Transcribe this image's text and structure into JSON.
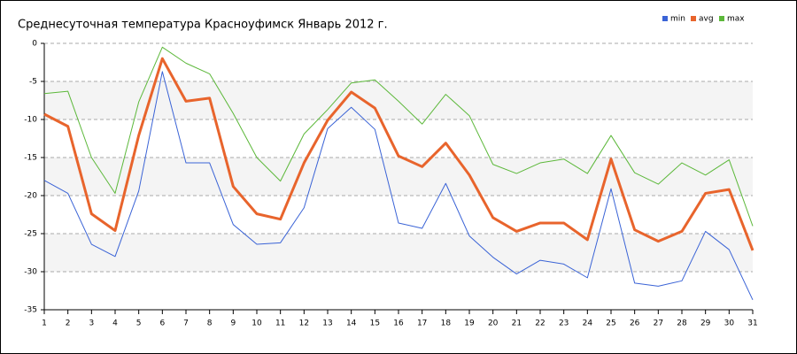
{
  "chart_data": {
    "type": "line",
    "title": "Среднесуточная температура Красноуфимск  Январь 2012 г.",
    "x": [
      1,
      2,
      3,
      4,
      5,
      6,
      7,
      8,
      9,
      10,
      11,
      12,
      13,
      14,
      15,
      16,
      17,
      18,
      19,
      20,
      21,
      22,
      23,
      24,
      25,
      26,
      27,
      28,
      29,
      30,
      31
    ],
    "xlim": [
      1,
      31
    ],
    "xticks": [
      1,
      2,
      3,
      4,
      5,
      6,
      7,
      8,
      9,
      10,
      11,
      12,
      13,
      14,
      15,
      16,
      17,
      18,
      19,
      20,
      21,
      22,
      23,
      24,
      25,
      26,
      27,
      28,
      29,
      30,
      31
    ],
    "ylim": [
      -35,
      0
    ],
    "yticks": [
      0,
      -5,
      -10,
      -15,
      -20,
      -25,
      -30,
      -35
    ],
    "grid": true,
    "legend": "top-right",
    "series": [
      {
        "name": "min",
        "color": "#3a63d6",
        "width": 1,
        "values": [
          -18.0,
          -19.7,
          -26.4,
          -28.0,
          -19.4,
          -3.7,
          -15.7,
          -15.7,
          -23.8,
          -26.4,
          -26.2,
          -21.6,
          -11.2,
          -8.4,
          -11.3,
          -23.6,
          -24.3,
          -18.4,
          -25.3,
          -28.1,
          -30.3,
          -28.5,
          -29.0,
          -30.8,
          -19.1,
          -31.5,
          -31.9,
          -31.2,
          -24.7,
          -27.1,
          -33.7
        ]
      },
      {
        "name": "avg",
        "color": "#e8642c",
        "width": 3,
        "values": [
          -9.3,
          -10.9,
          -22.4,
          -24.6,
          -12.1,
          -2.0,
          -7.6,
          -7.2,
          -18.8,
          -22.4,
          -23.1,
          -15.7,
          -10.1,
          -6.4,
          -8.5,
          -14.8,
          -16.2,
          -13.1,
          -17.3,
          -22.9,
          -24.7,
          -23.6,
          -23.6,
          -25.8,
          -15.2,
          -24.5,
          -26.0,
          -24.7,
          -19.7,
          -19.2,
          -27.2
        ]
      },
      {
        "name": "max",
        "color": "#5cb83a",
        "width": 1,
        "values": [
          -6.6,
          -6.3,
          -15.0,
          -19.7,
          -7.7,
          -0.5,
          -2.6,
          -4.0,
          -9.2,
          -15.0,
          -18.1,
          -11.9,
          -8.7,
          -5.2,
          -4.8,
          -7.6,
          -10.6,
          -6.7,
          -9.5,
          -15.9,
          -17.1,
          -15.7,
          -15.2,
          -17.1,
          -12.1,
          -17.0,
          -18.5,
          -15.7,
          -17.3,
          -15.3,
          -24.0
        ]
      }
    ]
  }
}
